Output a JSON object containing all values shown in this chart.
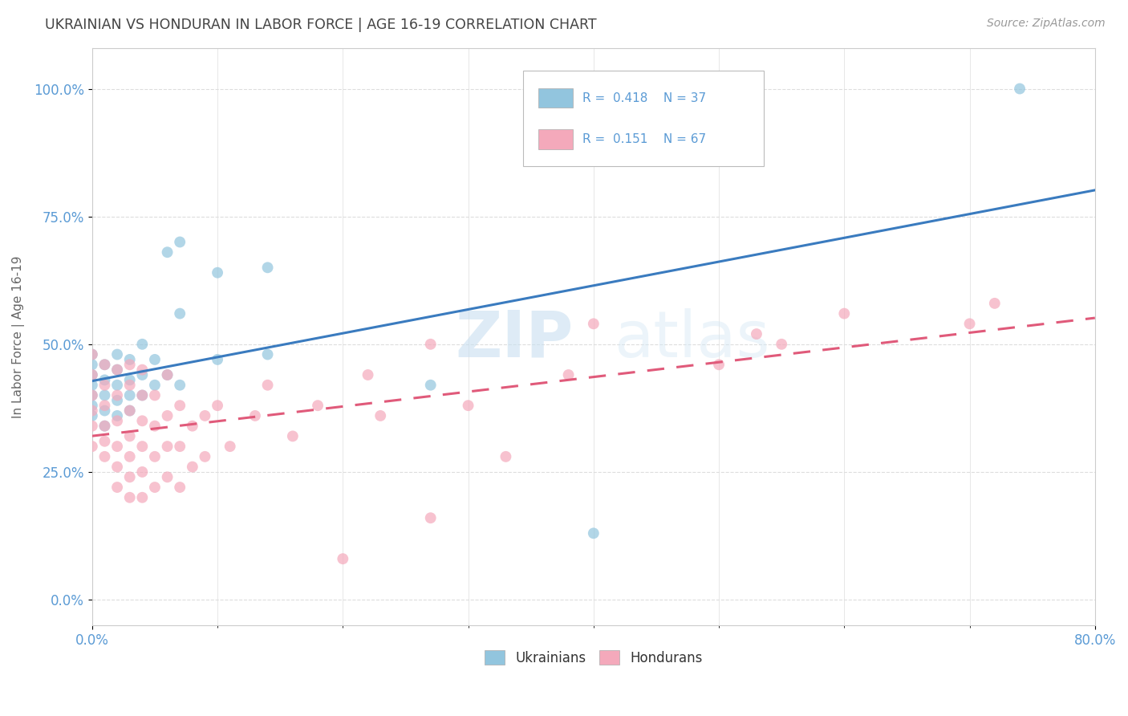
{
  "title": "UKRAINIAN VS HONDURAN IN LABOR FORCE | AGE 16-19 CORRELATION CHART",
  "source_text": "Source: ZipAtlas.com",
  "ylabel": "In Labor Force | Age 16-19",
  "xlim": [
    0.0,
    0.8
  ],
  "ylim": [
    -0.05,
    1.08
  ],
  "ytick_labels": [
    "0.0%",
    "25.0%",
    "50.0%",
    "75.0%",
    "100.0%"
  ],
  "ytick_values": [
    0.0,
    0.25,
    0.5,
    0.75,
    1.0
  ],
  "xtick_labels": [
    "0.0%",
    "80.0%"
  ],
  "xtick_values": [
    0.0,
    0.8
  ],
  "watermark_zip": "ZIP",
  "watermark_atlas": "atlas",
  "blue_color": "#92c5de",
  "pink_color": "#f4a9bb",
  "blue_line_color": "#3a7bbf",
  "pink_line_color": "#e05a7a",
  "bg_color": "#ffffff",
  "grid_color": "#dddddd",
  "title_color": "#444444",
  "axis_label_color": "#666666",
  "tick_label_color": "#5b9bd5",
  "text_color": "#333333",
  "ukrainians_x": [
    0.0,
    0.0,
    0.0,
    0.0,
    0.0,
    0.0,
    0.0,
    0.01,
    0.01,
    0.01,
    0.01,
    0.01,
    0.02,
    0.02,
    0.02,
    0.02,
    0.02,
    0.03,
    0.03,
    0.03,
    0.03,
    0.04,
    0.04,
    0.04,
    0.05,
    0.05,
    0.06,
    0.06,
    0.07,
    0.07,
    0.07,
    0.1,
    0.1,
    0.14,
    0.14,
    0.27,
    0.4,
    0.74
  ],
  "ukrainians_y": [
    0.36,
    0.38,
    0.4,
    0.42,
    0.44,
    0.46,
    0.48,
    0.34,
    0.37,
    0.4,
    0.43,
    0.46,
    0.36,
    0.39,
    0.42,
    0.45,
    0.48,
    0.37,
    0.4,
    0.43,
    0.47,
    0.4,
    0.44,
    0.5,
    0.42,
    0.47,
    0.44,
    0.68,
    0.42,
    0.56,
    0.7,
    0.47,
    0.64,
    0.48,
    0.65,
    0.42,
    0.13,
    1.0
  ],
  "hondurans_x": [
    0.0,
    0.0,
    0.0,
    0.0,
    0.0,
    0.0,
    0.01,
    0.01,
    0.01,
    0.01,
    0.01,
    0.01,
    0.02,
    0.02,
    0.02,
    0.02,
    0.02,
    0.02,
    0.03,
    0.03,
    0.03,
    0.03,
    0.03,
    0.03,
    0.03,
    0.04,
    0.04,
    0.04,
    0.04,
    0.04,
    0.04,
    0.05,
    0.05,
    0.05,
    0.05,
    0.06,
    0.06,
    0.06,
    0.06,
    0.07,
    0.07,
    0.07,
    0.08,
    0.08,
    0.09,
    0.09,
    0.1,
    0.11,
    0.13,
    0.14,
    0.16,
    0.18,
    0.2,
    0.22,
    0.23,
    0.27,
    0.27,
    0.3,
    0.33,
    0.38,
    0.4,
    0.5,
    0.53,
    0.55,
    0.6,
    0.7,
    0.72
  ],
  "hondurans_y": [
    0.3,
    0.34,
    0.37,
    0.4,
    0.44,
    0.48,
    0.28,
    0.31,
    0.34,
    0.38,
    0.42,
    0.46,
    0.22,
    0.26,
    0.3,
    0.35,
    0.4,
    0.45,
    0.2,
    0.24,
    0.28,
    0.32,
    0.37,
    0.42,
    0.46,
    0.2,
    0.25,
    0.3,
    0.35,
    0.4,
    0.45,
    0.22,
    0.28,
    0.34,
    0.4,
    0.24,
    0.3,
    0.36,
    0.44,
    0.22,
    0.3,
    0.38,
    0.26,
    0.34,
    0.28,
    0.36,
    0.38,
    0.3,
    0.36,
    0.42,
    0.32,
    0.38,
    0.08,
    0.44,
    0.36,
    0.5,
    0.16,
    0.38,
    0.28,
    0.44,
    0.54,
    0.46,
    0.52,
    0.5,
    0.56,
    0.54,
    0.58
  ]
}
